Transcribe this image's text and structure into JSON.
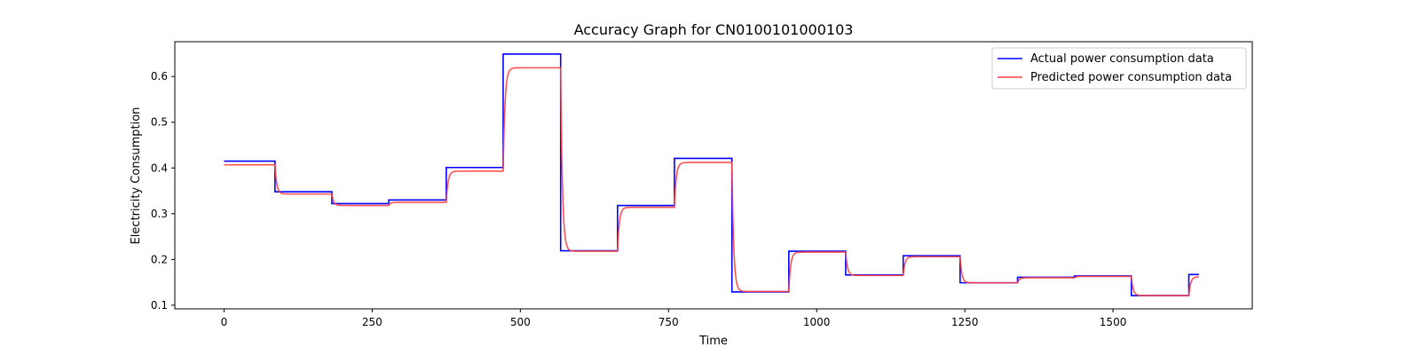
{
  "chart_data": {
    "type": "line",
    "title": "Accuracy Graph for CN0100101000103",
    "xlabel": "Time",
    "ylabel": "Electricity Consumption",
    "xlim": [
      -83,
      1735
    ],
    "ylim": [
      0.092,
      0.676
    ],
    "xticks": [
      0,
      250,
      500,
      750,
      1000,
      1250,
      1500
    ],
    "yticks": [
      0.1,
      0.2,
      0.3,
      0.4,
      0.5,
      0.6
    ],
    "ytick_labels": [
      "0.1",
      "0.2",
      "0.3",
      "0.4",
      "0.5",
      "0.6"
    ],
    "grid": false,
    "legend": "top-right",
    "segment_breaks": [
      0,
      86,
      182,
      278,
      375,
      471,
      568,
      664,
      760,
      857,
      953,
      1049,
      1146,
      1242,
      1339,
      1435,
      1531,
      1628,
      1645
    ],
    "series": [
      {
        "name": "Actual power consumption data",
        "color": "#0000ff",
        "values": [
          0.415,
          0.348,
          0.322,
          0.33,
          0.401,
          0.649,
          0.219,
          0.318,
          0.421,
          0.129,
          0.218,
          0.166,
          0.208,
          0.149,
          0.161,
          0.164,
          0.121,
          0.167
        ]
      },
      {
        "name": "Predicted power consumption data",
        "color": "#ff4040",
        "values": [
          0.407,
          0.343,
          0.318,
          0.325,
          0.393,
          0.619,
          0.218,
          0.314,
          0.412,
          0.13,
          0.216,
          0.165,
          0.206,
          0.149,
          0.16,
          0.163,
          0.121,
          0.162
        ]
      }
    ]
  }
}
